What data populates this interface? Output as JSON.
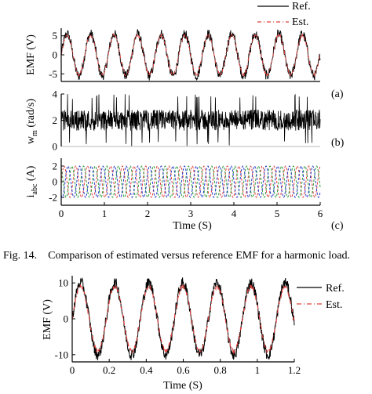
{
  "figure": {
    "caption": "Fig. 14.    Comparison of estimated versus reference EMF for a harmonic load.",
    "colors": {
      "ref": "#000000",
      "est": "#e0403c",
      "phase_a": "#e0403c",
      "phase_b": "#2a9a3a",
      "phase_c": "#2438c8"
    }
  },
  "chart_data": [
    {
      "type": "line",
      "panel_label": "(a)",
      "ylabel": "EMF (V)",
      "xlim": [
        0,
        6
      ],
      "ylim": [
        -7,
        7
      ],
      "yticks": [
        "5",
        "0",
        "-5"
      ],
      "legend": {
        "placement": "top-right",
        "entries": [
          "Ref.",
          "Est."
        ]
      },
      "series": [
        {
          "name": "Ref.",
          "signal": {
            "type": "sine",
            "amplitude": 5.5,
            "period": 0.545,
            "noise": 1.3
          }
        },
        {
          "name": "Est.",
          "signal": {
            "type": "sine",
            "amplitude": 5.2,
            "period": 0.545,
            "noise": 0.4
          }
        }
      ]
    },
    {
      "type": "line",
      "panel_label": "(b)",
      "ylabel": "w",
      "ylabel_sub": "m",
      "ylabel_unit": " (rad/s)",
      "xlim": [
        0,
        6
      ],
      "ylim": [
        0,
        4
      ],
      "yticks": [
        "4",
        "2",
        "0"
      ],
      "series": [
        {
          "name": "",
          "signal": {
            "type": "noise",
            "mean": 2.0,
            "spread": 0.8,
            "min": 0,
            "max": 4
          }
        }
      ]
    },
    {
      "type": "line",
      "panel_label": "(c)",
      "ylabel": "i",
      "ylabel_sub": "abc",
      "ylabel_unit": " (A)",
      "xlabel": "Time (S)",
      "xlim": [
        0,
        6
      ],
      "ylim": [
        -3,
        3
      ],
      "xticks": [
        "0",
        "1",
        "2",
        "3",
        "4",
        "5",
        "6"
      ],
      "yticks": [
        "2",
        "0",
        "-2"
      ],
      "series": [
        {
          "name": "",
          "signal": {
            "type": "sine",
            "amplitude": 2.0,
            "period": 0.27,
            "phase_deg": 0
          }
        },
        {
          "name": "",
          "signal": {
            "type": "sine",
            "amplitude": 2.0,
            "period": 0.27,
            "phase_deg": 120
          }
        },
        {
          "name": "",
          "signal": {
            "type": "sine",
            "amplitude": 2.0,
            "period": 0.27,
            "phase_deg": 240
          }
        }
      ]
    },
    {
      "type": "line",
      "ylabel": "EMF (V)",
      "xlabel": "Time (S)",
      "xlim": [
        0,
        1.2
      ],
      "ylim": [
        -12,
        12
      ],
      "xticks": [
        "0",
        "0.2",
        "0.4",
        "0.6",
        "0.8",
        "1",
        "1.2"
      ],
      "yticks": [
        "10",
        "0",
        "-10"
      ],
      "legend": {
        "placement": "top-right",
        "entries": [
          "Ref.",
          "Est."
        ]
      },
      "series": [
        {
          "name": "Ref.",
          "signal": {
            "type": "sine",
            "amplitude": 10.0,
            "period": 0.184,
            "noise": 1.6
          }
        },
        {
          "name": "Est.",
          "signal": {
            "type": "sine",
            "amplitude": 9.0,
            "period": 0.184,
            "noise": 0.6
          }
        }
      ]
    }
  ]
}
